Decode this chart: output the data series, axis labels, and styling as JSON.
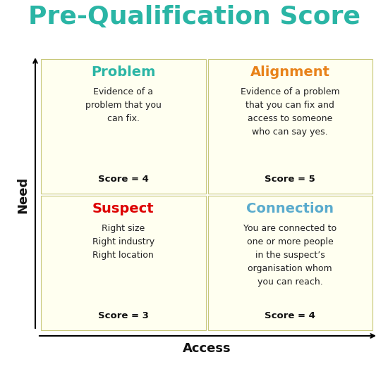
{
  "title": "Pre-Qualification Score",
  "title_color": "#2ab5a5",
  "title_fontsize": 26,
  "background_color": "#ffffff",
  "cell_bg_color": "#fffff0",
  "cell_border_color": "#c8c87a",
  "xlabel": "Access",
  "ylabel": "Need",
  "axis_label_fontsize": 13,
  "quadrants": [
    {
      "label": "Problem",
      "label_color": "#2ab5a5",
      "body": "Evidence of a\nproblem that you\ncan fix.",
      "score": "Score = 4",
      "position": "top-left"
    },
    {
      "label": "Alignment",
      "label_color": "#e8821a",
      "body": "Evidence of a problem\nthat you can fix and\naccess to someone\nwho can say yes.",
      "score": "Score = 5",
      "position": "top-right"
    },
    {
      "label": "Suspect",
      "label_color": "#dd0000",
      "body": "Right size\nRight industry\nRight location",
      "score": "Score = 3",
      "position": "bottom-left"
    },
    {
      "label": "Connection",
      "label_color": "#5aabcd",
      "body": "You are connected to\none or more people\nin the suspect’s\norganisation whom\nyou can reach.",
      "score": "Score = 4",
      "position": "bottom-right"
    }
  ],
  "label_fontsize": 14,
  "body_fontsize": 9,
  "score_fontsize": 9.5
}
